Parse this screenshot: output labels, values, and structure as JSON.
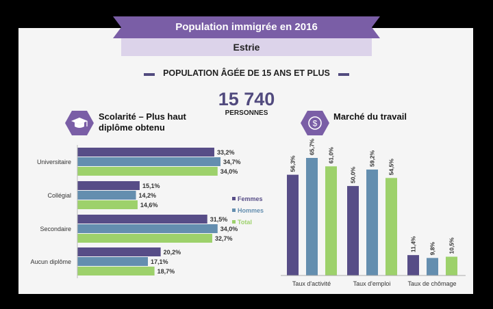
{
  "header": {
    "title": "Population immigrée en 2016",
    "region": "Estrie",
    "section": "POPULATION ÂGÉE DE 15 ANS ET PLUS",
    "population_value": "15 740",
    "population_unit": "PERSONNES"
  },
  "colors": {
    "femmes": "#574d87",
    "hommes": "#648eaf",
    "total": "#9dd16b",
    "accent": "#7a5ea6"
  },
  "icons": {
    "schooling": "graduation-cap-icon",
    "labour": "dollar-coin-icon"
  },
  "chart_data": [
    {
      "type": "bar",
      "orientation": "horizontal",
      "title": "Scolarité – Plus haut diplôme obtenu",
      "categories": [
        "Universitaire",
        "Collégial",
        "Secondaire",
        "Aucun diplôme"
      ],
      "series": [
        {
          "name": "Femmes",
          "values": [
            33.2,
            15.1,
            31.5,
            20.2
          ],
          "labels": [
            "33,2%",
            "15,1%",
            "31,5%",
            "20,2%"
          ]
        },
        {
          "name": "Hommes",
          "values": [
            34.7,
            14.2,
            34.0,
            17.1
          ],
          "labels": [
            "34,7%",
            "14,2%",
            "34,0%",
            "17,1%"
          ]
        },
        {
          "name": "Total",
          "values": [
            34.0,
            14.6,
            32.7,
            18.7
          ],
          "labels": [
            "34,0%",
            "14,6%",
            "32,7%",
            "18,7%"
          ]
        }
      ],
      "legend": [
        "Femmes",
        "Hommes",
        "Total"
      ],
      "legend_placement": "right",
      "xlim": [
        0,
        40
      ],
      "grid": false
    },
    {
      "type": "bar",
      "orientation": "vertical",
      "title": "Marché du travail",
      "categories": [
        "Taux d'activité",
        "Taux d'emploi",
        "Taux de chômage"
      ],
      "series": [
        {
          "name": "Femmes",
          "values": [
            56.3,
            50.0,
            11.4
          ],
          "labels": [
            "56,3%",
            "50,0%",
            "11,4%"
          ]
        },
        {
          "name": "Hommes",
          "values": [
            65.7,
            59.2,
            9.8
          ],
          "labels": [
            "65,7%",
            "59,2%",
            "9,8%"
          ]
        },
        {
          "name": "Total",
          "values": [
            61.0,
            54.5,
            10.5
          ],
          "labels": [
            "61,0%",
            "54,5%",
            "10,5%"
          ]
        }
      ],
      "ylim": [
        0,
        70
      ],
      "grid": false
    }
  ]
}
